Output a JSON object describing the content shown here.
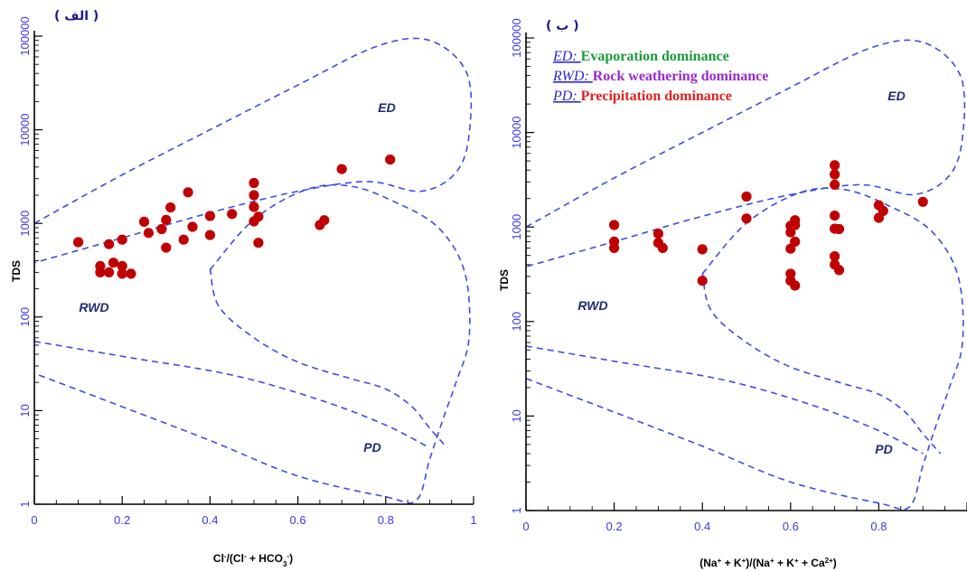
{
  "chart_data": [
    {
      "type": "scatter",
      "panel_label": "( الف )",
      "title": "",
      "xlabel_main": "Cl",
      "xlabel_sup1": "-",
      "xlabel_mid": "/(Cl",
      "xlabel_sup2": "-",
      "xlabel_mid2": " + HCO",
      "xlabel_sub": "3",
      "xlabel_sup3": "-",
      "xlabel_end": ")",
      "ylabel": "TDS",
      "xlim": [
        0,
        1
      ],
      "ylim": [
        1,
        100000
      ],
      "yscale": "log",
      "xticks": [
        "0",
        "0.2",
        "0.4",
        "0.6",
        "0.8",
        "1"
      ],
      "yticks": [
        "1",
        "10",
        "100",
        "1000",
        "10000",
        "100000"
      ],
      "regions": [
        "ED",
        "RWD",
        "PD"
      ],
      "marker_color": "#c00000",
      "curve_color": "#3a4ee0",
      "points": [
        {
          "x": 0.1,
          "y": 630
        },
        {
          "x": 0.15,
          "y": 350
        },
        {
          "x": 0.15,
          "y": 300
        },
        {
          "x": 0.17,
          "y": 300
        },
        {
          "x": 0.17,
          "y": 600
        },
        {
          "x": 0.18,
          "y": 380
        },
        {
          "x": 0.2,
          "y": 350
        },
        {
          "x": 0.2,
          "y": 290
        },
        {
          "x": 0.2,
          "y": 670
        },
        {
          "x": 0.22,
          "y": 290
        },
        {
          "x": 0.25,
          "y": 1040
        },
        {
          "x": 0.26,
          "y": 790
        },
        {
          "x": 0.29,
          "y": 870
        },
        {
          "x": 0.3,
          "y": 1090
        },
        {
          "x": 0.3,
          "y": 550
        },
        {
          "x": 0.31,
          "y": 1480
        },
        {
          "x": 0.34,
          "y": 670
        },
        {
          "x": 0.35,
          "y": 2150
        },
        {
          "x": 0.36,
          "y": 920
        },
        {
          "x": 0.4,
          "y": 1200
        },
        {
          "x": 0.4,
          "y": 750
        },
        {
          "x": 0.45,
          "y": 1260
        },
        {
          "x": 0.5,
          "y": 2700
        },
        {
          "x": 0.5,
          "y": 2000
        },
        {
          "x": 0.5,
          "y": 1500
        },
        {
          "x": 0.5,
          "y": 1050
        },
        {
          "x": 0.51,
          "y": 1180
        },
        {
          "x": 0.51,
          "y": 620
        },
        {
          "x": 0.65,
          "y": 960
        },
        {
          "x": 0.66,
          "y": 1080
        },
        {
          "x": 0.7,
          "y": 3800
        },
        {
          "x": 0.81,
          "y": 4800
        }
      ]
    },
    {
      "type": "scatter",
      "panel_label": "( ب )",
      "title": "",
      "xlabel_parts": [
        "(Na",
        "+",
        " + K",
        "+",
        ")/(Na",
        "+",
        " + K",
        "+",
        " + Ca",
        "2+",
        ")"
      ],
      "ylabel": "TDS",
      "xlim": [
        0,
        1
      ],
      "ylim": [
        1,
        100000
      ],
      "yscale": "log",
      "xticks": [
        "0",
        "0.2",
        "0.4",
        "0.6",
        "0.8"
      ],
      "yticks": [
        "1",
        "10",
        "100",
        "1000",
        "10000",
        "100000"
      ],
      "regions": [
        "ED",
        "RWD",
        "PD"
      ],
      "marker_color": "#c00000",
      "curve_color": "#3a4ee0",
      "legend": [
        {
          "key": "ED",
          "text": "Evaporation dominance",
          "color": "#1a9a3a"
        },
        {
          "key": "RWD",
          "text": "Rock weathering dominance",
          "color": "#9a2ad0"
        },
        {
          "key": "PD",
          "text": "Precipitation dominance",
          "color": "#e02020"
        }
      ],
      "points": [
        {
          "x": 0.2,
          "y": 1050
        },
        {
          "x": 0.2,
          "y": 700
        },
        {
          "x": 0.2,
          "y": 600
        },
        {
          "x": 0.3,
          "y": 850
        },
        {
          "x": 0.3,
          "y": 680
        },
        {
          "x": 0.31,
          "y": 600
        },
        {
          "x": 0.4,
          "y": 580
        },
        {
          "x": 0.4,
          "y": 270
        },
        {
          "x": 0.5,
          "y": 2100
        },
        {
          "x": 0.5,
          "y": 1230
        },
        {
          "x": 0.6,
          "y": 1030
        },
        {
          "x": 0.6,
          "y": 880
        },
        {
          "x": 0.6,
          "y": 590
        },
        {
          "x": 0.6,
          "y": 320
        },
        {
          "x": 0.61,
          "y": 1180
        },
        {
          "x": 0.61,
          "y": 1050
        },
        {
          "x": 0.61,
          "y": 700
        },
        {
          "x": 0.6,
          "y": 270
        },
        {
          "x": 0.61,
          "y": 240
        },
        {
          "x": 0.7,
          "y": 4500
        },
        {
          "x": 0.7,
          "y": 3600
        },
        {
          "x": 0.7,
          "y": 2800
        },
        {
          "x": 0.7,
          "y": 1320
        },
        {
          "x": 0.7,
          "y": 960
        },
        {
          "x": 0.71,
          "y": 950
        },
        {
          "x": 0.7,
          "y": 490
        },
        {
          "x": 0.7,
          "y": 400
        },
        {
          "x": 0.71,
          "y": 350
        },
        {
          "x": 0.8,
          "y": 1700
        },
        {
          "x": 0.8,
          "y": 1250
        },
        {
          "x": 0.81,
          "y": 1480
        },
        {
          "x": 0.9,
          "y": 1850
        }
      ]
    }
  ]
}
